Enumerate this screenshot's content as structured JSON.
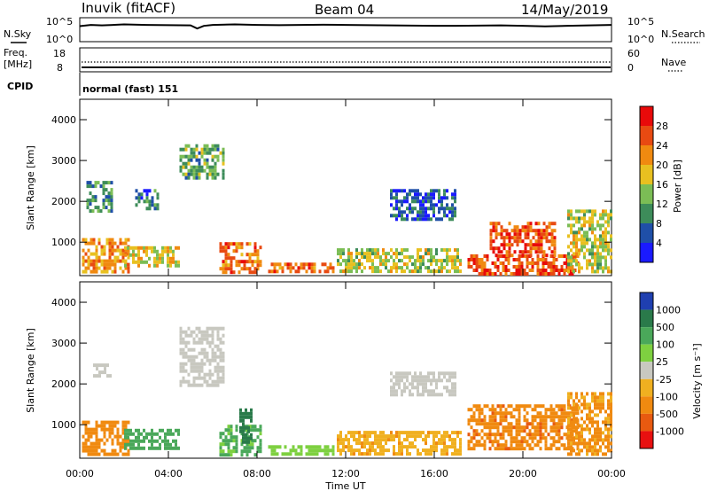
{
  "header": {
    "station": "Inuvik (fitACF)",
    "beam": "Beam 04",
    "date": "14/May/2019"
  },
  "top_panels": {
    "nsky_label": "N.Sky",
    "nsky_ticks": [
      "10^5",
      "10^0"
    ],
    "nsearch_label": "N.Search",
    "freq_label_1": "Freq.",
    "freq_label_2": "[MHz]",
    "freq_ticks": [
      "18",
      "8"
    ],
    "nave_ticks": [
      "60",
      "0"
    ],
    "nave_label": "Nave",
    "cpid_label": "CPID",
    "cpid_text": "normal (fast) 151"
  },
  "axes": {
    "ylabel": "Slant Range [km]",
    "xlabel": "Time UT",
    "y_ticks": [
      "1000",
      "2000",
      "3000",
      "4000"
    ],
    "x_ticks": [
      "00:00",
      "04:00",
      "08:00",
      "12:00",
      "16:00",
      "20:00",
      "00:00"
    ]
  },
  "power_scale": {
    "label": "Power [dB]",
    "ticks": [
      "4",
      "8",
      "12",
      "16",
      "20",
      "24",
      "28"
    ],
    "colors": [
      "#1a1aff",
      "#1f4fa8",
      "#3d8c5a",
      "#7bbd55",
      "#e8c020",
      "#f08a10",
      "#e84a12",
      "#e80a0a"
    ]
  },
  "velocity_scale": {
    "label": "Velocity [m s⁻¹]",
    "ticks": [
      "1000",
      "500",
      "100",
      "25",
      "-25",
      "-100",
      "-500",
      "-1000"
    ],
    "colors": [
      "#1f3fb0",
      "#2a7a4a",
      "#4aa85a",
      "#7ed040",
      "#c8c8c0",
      "#f0b020",
      "#f08a10",
      "#e85a10",
      "#e81010"
    ]
  },
  "chart_data": {
    "type": "heatmap",
    "x_range_hours": [
      0,
      24
    ],
    "y_range_km": [
      180,
      4500
    ],
    "power_regions": [
      {
        "t": [
          0.1,
          2.2
        ],
        "r": [
          250,
          1100
        ],
        "power_db": 22
      },
      {
        "t": [
          0.3,
          1.4
        ],
        "r": [
          1800,
          2500
        ],
        "power_db": 10
      },
      {
        "t": [
          2.5,
          3.5
        ],
        "r": [
          1800,
          2300
        ],
        "power_db": 8
      },
      {
        "t": [
          2.0,
          4.5
        ],
        "r": [
          400,
          900
        ],
        "power_db": 18
      },
      {
        "t": [
          4.5,
          6.5
        ],
        "r": [
          2600,
          3400
        ],
        "power_db": 12
      },
      {
        "t": [
          6.3,
          8.2
        ],
        "r": [
          300,
          1000
        ],
        "power_db": 24
      },
      {
        "t": [
          8.5,
          11.5
        ],
        "r": [
          250,
          500
        ],
        "power_db": 24
      },
      {
        "t": [
          11.6,
          17.2
        ],
        "r": [
          300,
          850
        ],
        "power_db": 16
      },
      {
        "t": [
          14.0,
          17.0
        ],
        "r": [
          1600,
          2300
        ],
        "power_db": 6
      },
      {
        "t": [
          17.5,
          22.5
        ],
        "r": [
          250,
          700
        ],
        "power_db": 26
      },
      {
        "t": [
          18.5,
          21.5
        ],
        "r": [
          700,
          1500
        ],
        "power_db": 26
      },
      {
        "t": [
          22.0,
          24.0
        ],
        "r": [
          300,
          1800
        ],
        "power_db": 16
      }
    ],
    "velocity_regions": [
      {
        "t": [
          0.1,
          2.2
        ],
        "r": [
          250,
          1100
        ],
        "velocity_ms": -150
      },
      {
        "t": [
          0.6,
          1.4
        ],
        "r": [
          2200,
          2500
        ],
        "velocity_ms": 0
      },
      {
        "t": [
          2.0,
          4.5
        ],
        "r": [
          400,
          900
        ],
        "velocity_ms": 150
      },
      {
        "t": [
          4.5,
          6.5
        ],
        "r": [
          2000,
          3400
        ],
        "velocity_ms": 0
      },
      {
        "t": [
          6.3,
          8.2
        ],
        "r": [
          300,
          1000
        ],
        "velocity_ms": 120
      },
      {
        "t": [
          7.2,
          7.8
        ],
        "r": [
          600,
          1400
        ],
        "velocity_ms": 800
      },
      {
        "t": [
          8.5,
          11.5
        ],
        "r": [
          250,
          500
        ],
        "velocity_ms": 60
      },
      {
        "t": [
          11.6,
          17.2
        ],
        "r": [
          300,
          850
        ],
        "velocity_ms": -80
      },
      {
        "t": [
          14.0,
          17.0
        ],
        "r": [
          1700,
          2300
        ],
        "velocity_ms": 0
      },
      {
        "t": [
          17.5,
          22.5
        ],
        "r": [
          400,
          1500
        ],
        "velocity_ms": -400
      },
      {
        "t": [
          22.0,
          24.0
        ],
        "r": [
          300,
          1800
        ],
        "velocity_ms": -120
      }
    ],
    "nsky_series": [
      [
        0,
        0.65
      ],
      [
        0.5,
        0.7
      ],
      [
        1,
        0.68
      ],
      [
        2,
        0.72
      ],
      [
        3,
        0.7
      ],
      [
        4,
        0.69
      ],
      [
        5,
        0.68
      ],
      [
        5.3,
        0.55
      ],
      [
        5.6,
        0.66
      ],
      [
        6,
        0.7
      ],
      [
        7,
        0.72
      ],
      [
        8,
        0.7
      ],
      [
        9,
        0.69
      ],
      [
        10,
        0.7
      ],
      [
        11,
        0.71
      ],
      [
        12,
        0.7
      ],
      [
        13,
        0.69
      ],
      [
        14,
        0.68
      ],
      [
        15,
        0.67
      ],
      [
        16,
        0.66
      ],
      [
        17,
        0.66
      ],
      [
        18,
        0.67
      ],
      [
        19,
        0.68
      ],
      [
        20,
        0.66
      ],
      [
        21,
        0.64
      ],
      [
        22,
        0.66
      ],
      [
        23,
        0.68
      ],
      [
        24,
        0.7
      ]
    ]
  }
}
